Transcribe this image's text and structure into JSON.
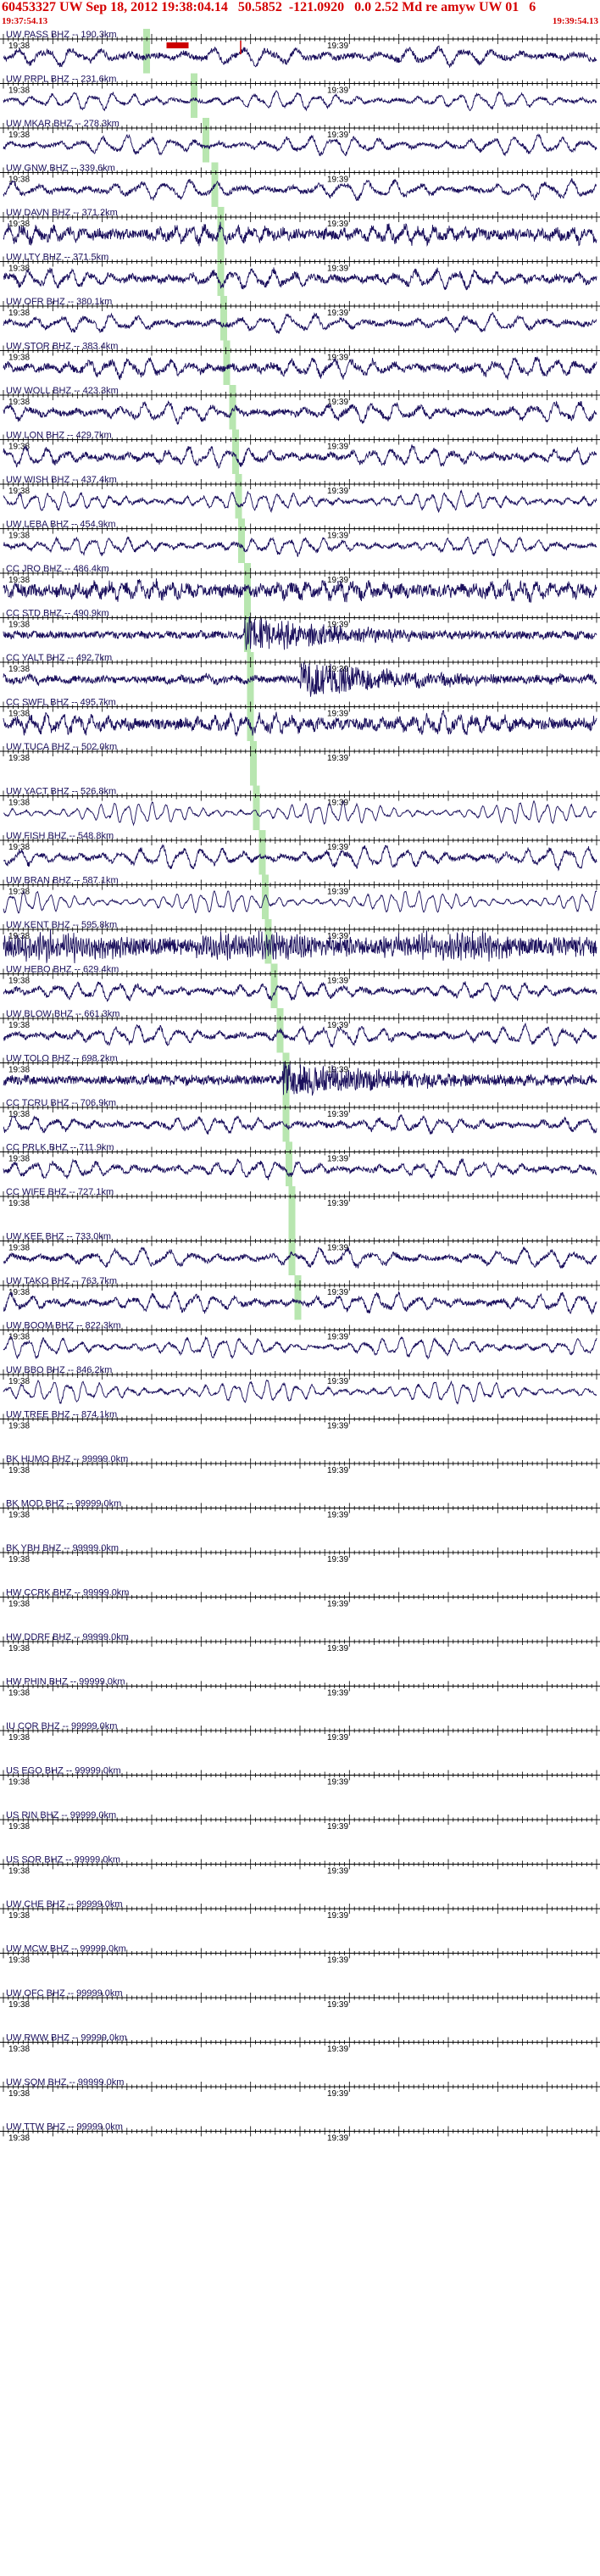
{
  "header": {
    "title": "60453327 UW Sep 18, 2012 19:38:04.14   50.5852  -121.0920   0.0 2.52 Md re amyw UW 01   6",
    "start_time": "19:37:54.13",
    "end_time": "19:39:54.13"
  },
  "colors": {
    "header_text": "#d40000",
    "trace": "#1a0f5c",
    "axis": "#000000",
    "pick_band": "#b8e6b0",
    "marker_red": "#cc0000"
  },
  "chart_data": {
    "type": "line",
    "title": "60453327 UW Sep 18, 2012 19:38:04.14   50.5852  -121.0920   0.0 2.52 Md re amyw UW 01   6",
    "time_window": [
      "19:37:54.13",
      "19:39:54.13"
    ],
    "tick_labels": [
      "19:38",
      "19:39"
    ],
    "ticks_per_minute": 60,
    "channels": [
      {
        "label": "UW PASS BHZ -- 190.3km",
        "pick": 19.38,
        "has_trace": true,
        "amp": 0.55,
        "period": 5.5,
        "noise": 0.35,
        "markers": [
          {
            "kind": "bar",
            "t": 19.45
          },
          {
            "kind": "tick",
            "t": 19.7
          }
        ]
      },
      {
        "label": "UW PRPL BHZ -- 231.6km",
        "pick": 19.54,
        "has_trace": true,
        "amp": 0.55,
        "period": 4.0,
        "noise": 0.2
      },
      {
        "label": "UW MKAR BHZ -- 278.3km",
        "pick": 19.58,
        "has_trace": true,
        "amp": 0.6,
        "period": 4.5,
        "noise": 0.25
      },
      {
        "label": "UW GNW BHZ -- 339.6km",
        "pick": 19.61,
        "has_trace": true,
        "amp": 0.6,
        "period": 5.0,
        "noise": 0.3
      },
      {
        "label": "UW DAVN BHZ -- 371.2km",
        "pick": 19.63,
        "has_trace": true,
        "amp": 0.5,
        "period": 3.0,
        "noise": 0.6
      },
      {
        "label": "UW LTY BHZ -- 371.5km",
        "pick": 19.63,
        "has_trace": true,
        "amp": 0.55,
        "period": 4.0,
        "noise": 0.4
      },
      {
        "label": "UW OFR BHZ -- 380.1km",
        "pick": 19.64,
        "has_trace": true,
        "amp": 0.55,
        "period": 5.0,
        "noise": 0.3
      },
      {
        "label": "UW STOR BHZ -- 383.4km",
        "pick": 19.65,
        "has_trace": true,
        "amp": 0.6,
        "period": 4.0,
        "noise": 0.4
      },
      {
        "label": "UW WOLL BHZ -- 423.3km",
        "pick": 19.67,
        "has_trace": true,
        "amp": 0.6,
        "period": 4.5,
        "noise": 0.35
      },
      {
        "label": "UW LON BHZ -- 429.7km",
        "pick": 19.68,
        "has_trace": true,
        "amp": 0.6,
        "period": 4.0,
        "noise": 0.35
      },
      {
        "label": "UW WISH BHZ -- 437.4km",
        "pick": 19.69,
        "has_trace": true,
        "amp": 0.6,
        "period": 3.0,
        "noise": 0.2
      },
      {
        "label": "UW LEBA BHZ -- 454.9km",
        "pick": 19.7,
        "has_trace": true,
        "amp": 0.55,
        "period": 3.5,
        "noise": 0.25
      },
      {
        "label": "CC JRO BHZ -- 486.4km",
        "pick": 19.72,
        "has_trace": true,
        "amp": 0.5,
        "period": 3.0,
        "noise": 0.7
      },
      {
        "label": "CC STD BHZ -- 490.9km",
        "pick": 19.72,
        "has_trace": true,
        "amp": 0.12,
        "period": 3.0,
        "noise": 0.4,
        "burst": 19.71
      },
      {
        "label": "CC YALT BHZ -- 492.7km",
        "pick": 19.73,
        "has_trace": true,
        "amp": 0.2,
        "period": 5.0,
        "noise": 0.4,
        "burst": 19.9
      },
      {
        "label": "CC SWFL BHZ -- 495.7km",
        "pick": 19.73,
        "has_trace": true,
        "amp": 0.55,
        "period": 3.0,
        "noise": 0.6
      },
      {
        "label": "UW TUCA BHZ -- 502.0km",
        "pick": 19.74,
        "has_trace": false
      },
      {
        "label": "UW YACT BHZ -- 526.8km",
        "pick": 19.75,
        "has_trace": true,
        "amp": 0.7,
        "period": 2.5,
        "noise": 0.1
      },
      {
        "label": "UW FISH BHZ -- 548.8km",
        "pick": 19.77,
        "has_trace": true,
        "amp": 0.7,
        "period": 4.0,
        "noise": 0.3
      },
      {
        "label": "UW BRAN BHZ -- 587.1km",
        "pick": 19.78,
        "has_trace": true,
        "amp": 0.7,
        "period": 2.5,
        "noise": 0.1
      },
      {
        "label": "UW KENT BHZ -- 595.8km",
        "pick": 19.79,
        "has_trace": true,
        "amp": 0.6,
        "period": 0.5,
        "noise": 1.0
      },
      {
        "label": "UW HEBO BHZ -- 629.4km",
        "pick": 19.81,
        "has_trace": true,
        "amp": 0.55,
        "period": 4.0,
        "noise": 0.3
      },
      {
        "label": "UW BLOW BHZ -- 661.3km",
        "pick": 19.83,
        "has_trace": true,
        "amp": 0.6,
        "period": 4.0,
        "noise": 0.3
      },
      {
        "label": "UW TOLO BHZ -- 698.2km",
        "pick": 19.85,
        "has_trace": true,
        "amp": 0.15,
        "period": 3.0,
        "noise": 0.5,
        "burst": 19.84
      },
      {
        "label": "CC TCRU BHZ -- 706.9km",
        "pick": 19.85,
        "has_trace": true,
        "amp": 0.5,
        "period": 4.0,
        "noise": 0.3
      },
      {
        "label": "CC PRLK BHZ -- 711.9km",
        "pick": 19.86,
        "has_trace": true,
        "amp": 0.55,
        "period": 4.0,
        "noise": 0.3
      },
      {
        "label": "CC WIFE BHZ -- 727.1km",
        "pick": 19.87,
        "has_trace": false
      },
      {
        "label": "UW KEE BHZ -- 733.0km",
        "pick": 19.87,
        "has_trace": true,
        "amp": 0.6,
        "period": 5.0,
        "noise": 0.3
      },
      {
        "label": "UW TAKO BHZ -- 763.7km",
        "pick": 19.89,
        "has_trace": true,
        "amp": 0.6,
        "period": 4.0,
        "noise": 0.3
      },
      {
        "label": "UW BOOM BHZ -- 822.3km",
        "pick": null,
        "has_trace": true,
        "amp": 0.65,
        "period": 3.5,
        "noise": 0.2
      },
      {
        "label": "UW BBO BHZ -- 846.2km",
        "pick": null,
        "has_trace": true,
        "amp": 0.7,
        "period": 3.0,
        "noise": 0.15
      },
      {
        "label": "UW TREE BHZ -- 874.1km",
        "pick": null,
        "has_trace": false
      },
      {
        "label": "BK HUMO BHZ -- 99999.0km",
        "pick": null,
        "has_trace": false
      },
      {
        "label": "BK MOD BHZ -- 99999.0km",
        "pick": null,
        "has_trace": false
      },
      {
        "label": "BK YBH BHZ -- 99999.0km",
        "pick": null,
        "has_trace": false
      },
      {
        "label": "HW CCRK BHZ -- 99999.0km",
        "pick": null,
        "has_trace": false
      },
      {
        "label": "HW DDRF BHZ -- 99999.0km",
        "pick": null,
        "has_trace": false
      },
      {
        "label": "HW PHIN BHZ -- 99999.0km",
        "pick": null,
        "has_trace": false
      },
      {
        "label": "IU COR BHZ -- 99999.0km",
        "pick": null,
        "has_trace": false
      },
      {
        "label": "US EGO BHZ -- 99999.0km",
        "pick": null,
        "has_trace": false
      },
      {
        "label": "US RIN BHZ -- 99999.0km",
        "pick": null,
        "has_trace": false
      },
      {
        "label": "US SOR BHZ -- 99999.0km",
        "pick": null,
        "has_trace": false
      },
      {
        "label": "UW CHE BHZ -- 99999.0km",
        "pick": null,
        "has_trace": false
      },
      {
        "label": "UW MCW BHZ -- 99999.0km",
        "pick": null,
        "has_trace": false
      },
      {
        "label": "UW OFC BHZ -- 99999.0km",
        "pick": null,
        "has_trace": false
      },
      {
        "label": "UW RWW BHZ -- 99999.0km",
        "pick": null,
        "has_trace": false
      },
      {
        "label": "UW SQM BHZ -- 99999.0km",
        "pick": null,
        "has_trace": false
      },
      {
        "label": "UW TTW BHZ -- 99999.0km",
        "pick": null,
        "has_trace": false
      }
    ]
  }
}
